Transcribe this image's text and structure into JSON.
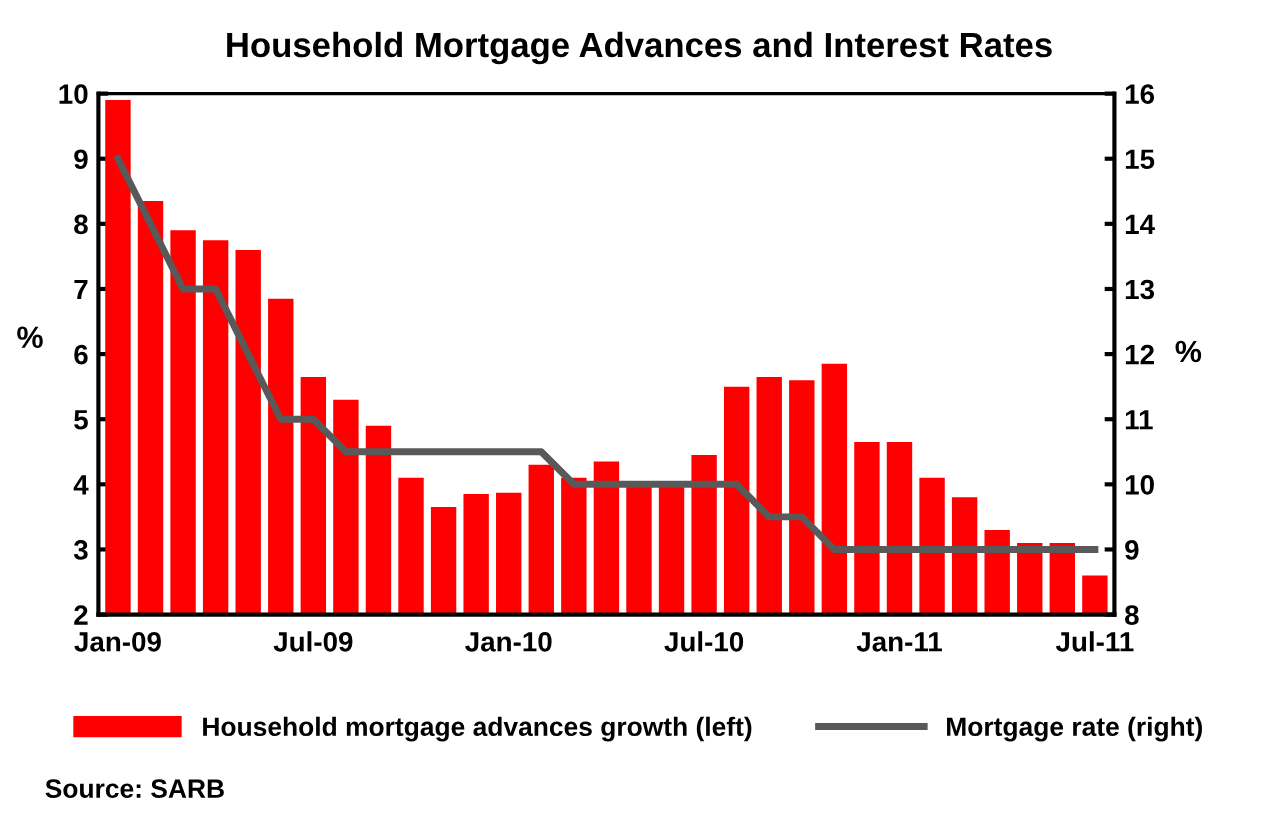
{
  "chart_data": {
    "type": "bar",
    "title": "Household Mortgage Advances and Interest Rates",
    "ylabel": "%",
    "y2label": "%",
    "categories": [
      "Jan-09",
      null,
      null,
      null,
      null,
      null,
      "Jul-09",
      null,
      null,
      null,
      null,
      null,
      "Jan-10",
      null,
      null,
      null,
      null,
      null,
      "Jul-10",
      null,
      null,
      null,
      null,
      null,
      "Jan-11",
      null,
      null,
      null,
      null,
      null,
      "Jul-11"
    ],
    "series": [
      {
        "name": "Household mortgage advances growth (left)",
        "color": "#ff0000",
        "values": [
          9.9,
          8.35,
          7.9,
          7.75,
          7.6,
          6.85,
          5.65,
          5.3,
          4.9,
          4.1,
          3.65,
          3.85,
          3.87,
          4.3,
          4.1,
          4.35,
          4.0,
          4.0,
          4.45,
          5.5,
          5.65,
          5.6,
          5.85,
          4.65,
          4.65,
          4.1,
          3.8,
          3.3,
          3.1,
          3.1,
          2.6
        ]
      },
      {
        "name": "Mortgage rate (right)",
        "type": "line",
        "axis": "y2",
        "color": "#595959",
        "values": [
          15,
          14,
          13,
          13,
          12,
          11,
          11,
          10.5,
          10.5,
          10.5,
          10.5,
          10.5,
          10.5,
          10.5,
          10,
          10,
          10,
          10,
          10,
          10,
          9.5,
          9.5,
          9,
          9,
          9,
          9,
          9,
          9,
          9,
          9,
          9
        ]
      }
    ],
    "ylim": [
      2,
      10
    ],
    "yticks": [
      2,
      3,
      4,
      5,
      6,
      7,
      8,
      9,
      10
    ],
    "y2lim": [
      8,
      16
    ],
    "y2ticks": [
      8,
      9,
      10,
      11,
      12,
      13,
      14,
      15,
      16
    ],
    "grid": false,
    "legend": "bottom",
    "annotations": [
      "Source: SARB"
    ]
  }
}
